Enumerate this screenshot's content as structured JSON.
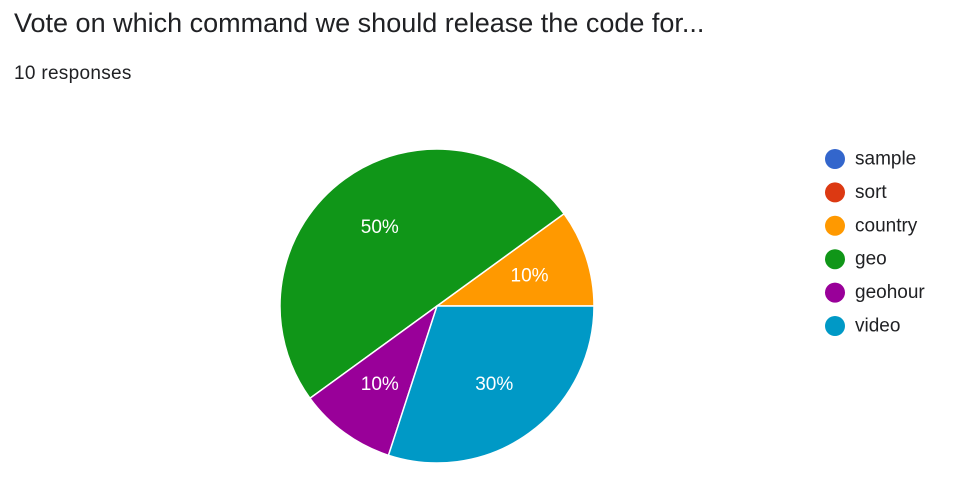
{
  "header": {
    "title": "Vote on which command we should release the code for...",
    "responses": "10 responses"
  },
  "chart_data": {
    "type": "pie",
    "title": "Vote on which command we should release the code for...",
    "legend_position": "right",
    "start_angle_deg": 0,
    "direction": "counterclockwise",
    "categories": [
      "sample",
      "sort",
      "country",
      "geo",
      "geohour",
      "video"
    ],
    "values": [
      0,
      0,
      10,
      50,
      10,
      30
    ],
    "unit": "%",
    "colors": [
      "#3366cc",
      "#dc3912",
      "#ff9900",
      "#109618",
      "#990099",
      "#0099c6"
    ],
    "slice_labels": [
      "",
      "",
      "10%",
      "50%",
      "10%",
      "30%"
    ]
  }
}
